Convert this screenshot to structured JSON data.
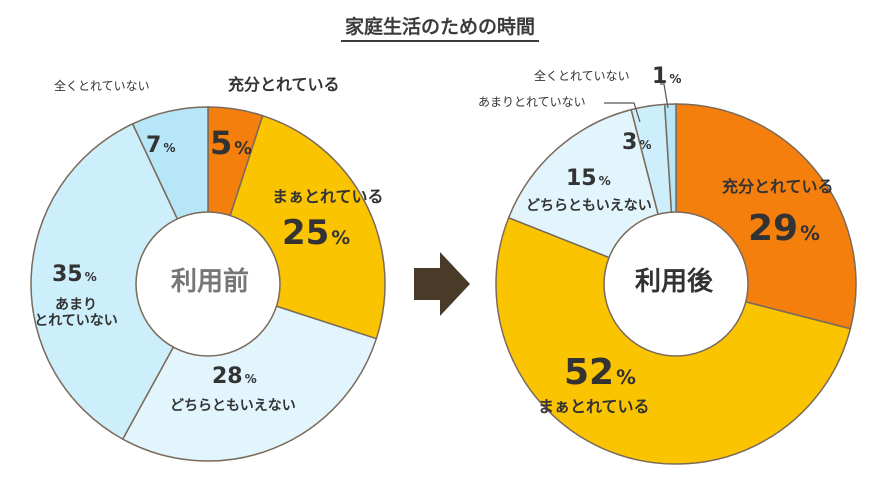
{
  "title": "家庭生活のための時間",
  "percent_sign": "%",
  "chart_data": [
    {
      "type": "pie",
      "center_label": "利用前",
      "slices": [
        {
          "label": "充分とれている",
          "value": 5,
          "color": "#f57f0c"
        },
        {
          "label": "まぁとれている",
          "value": 25,
          "color": "#fbc400"
        },
        {
          "label": "どちらともいえない",
          "value": 28,
          "color": "#e2f5fc"
        },
        {
          "label": "あまりとれていない",
          "value": 35,
          "color": "#cdeefb"
        },
        {
          "label": "全くとれていない",
          "value": 7,
          "color": "#b6e6f8"
        }
      ],
      "texts": {
        "s0_label": "充分とれている",
        "s0_value": "5",
        "s1_label": "まぁとれている",
        "s1_value": "25",
        "s2_label": "どちらともいえない",
        "s2_value": "28",
        "s3_label_line1": "あまり",
        "s3_label_line2": "とれていない",
        "s3_value": "35",
        "s4_label": "全くとれていない",
        "s4_value": "7"
      }
    },
    {
      "type": "pie",
      "center_label": "利用後",
      "slices": [
        {
          "label": "充分とれている",
          "value": 29,
          "color": "#f57f0c"
        },
        {
          "label": "まぁとれている",
          "value": 52,
          "color": "#fbc400"
        },
        {
          "label": "どちらともいえない",
          "value": 15,
          "color": "#e2f5fc"
        },
        {
          "label": "あまりとれていない",
          "value": 3,
          "color": "#cdeefb"
        },
        {
          "label": "全くとれていない",
          "value": 1,
          "color": "#b6e6f8"
        }
      ],
      "texts": {
        "s0_label": "充分とれている",
        "s0_value": "29",
        "s1_label": "まぁとれている",
        "s1_value": "52",
        "s2_label": "どちらともいえない",
        "s2_value": "15",
        "s3_label": "あまりとれていない",
        "s3_value": "3",
        "s4_label": "全くとれていない",
        "s4_value": "1"
      }
    }
  ],
  "colors": {
    "stroke": "#7a6a5a",
    "arrow": "#4a3a28",
    "text": "#3b3b3b"
  }
}
